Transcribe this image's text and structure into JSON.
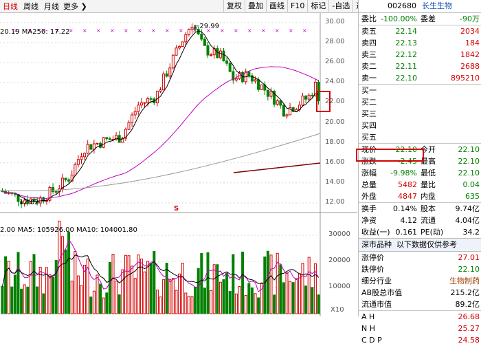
{
  "toolbar": {
    "period_tabs": [
      "日线",
      "周线",
      "月线",
      "更多"
    ],
    "buttons": [
      "复权",
      "叠加",
      "画线",
      "F10",
      "标记",
      "-自选",
      "返回"
    ]
  },
  "stock": {
    "code": "002680",
    "name": "长生生物"
  },
  "chart": {
    "ma_label": "20.19 MA250: 17.22",
    "vol_label": "2.00 MA5: 105926.00 MA10: 104001.80",
    "price_high_label": "29.99",
    "price_low_label": "12.02",
    "marker_s": "S",
    "price_axis": [
      "30.00",
      "28.00",
      "26.00",
      "24.00",
      "22.00",
      "20.00",
      "18.00",
      "16.00",
      "14.00",
      "12.00"
    ],
    "vol_axis": [
      "30000",
      "20000",
      "10000"
    ],
    "vol_unit": "X10"
  },
  "quotes": {
    "ratio": {
      "label": "委比",
      "value": "-100.00%",
      "label2": "委差",
      "value2": "-90万"
    },
    "sell": [
      {
        "label": "卖五",
        "price": "22.14",
        "vol": "2034"
      },
      {
        "label": "卖四",
        "price": "22.13",
        "vol": "184"
      },
      {
        "label": "卖三",
        "price": "22.12",
        "vol": "1842"
      },
      {
        "label": "卖二",
        "price": "22.11",
        "vol": "2688"
      },
      {
        "label": "卖一",
        "price": "22.10",
        "vol": "895210"
      }
    ],
    "buy": [
      "买一",
      "买二",
      "买三",
      "买四",
      "买五"
    ],
    "stats": [
      {
        "l1": "现价",
        "v1": "22.10",
        "l2": "今开",
        "v2": "22.10"
      },
      {
        "l1": "涨跌",
        "v1": "-2.45",
        "l2": "最高",
        "v2": "22.10"
      },
      {
        "l1": "涨幅",
        "v1": "-9.98%",
        "l2": "最低",
        "v2": "22.10"
      },
      {
        "l1": "总量",
        "v1": "5482",
        "l2": "量比",
        "v2": "0.04"
      },
      {
        "l1": "外盘",
        "v1": "4847",
        "l2": "内盘",
        "v2": "635"
      }
    ],
    "stats2": [
      {
        "l1": "换手",
        "v1": "0.14%",
        "l2": "股本",
        "v2": "9.74亿"
      },
      {
        "l1": "净资",
        "v1": "4.12",
        "l2": "流通",
        "v2": "4.04亿"
      },
      {
        "l1": "收益(一)",
        "v1": "0.161",
        "l2": "PE(动)",
        "v2": "34.2"
      }
    ]
  },
  "market": {
    "header_left": "深市品种",
    "header_right": "以下数据仅供参考",
    "rows": [
      {
        "label": "涨停价",
        "value": "27.01"
      },
      {
        "label": "跌停价",
        "value": "22.10"
      },
      {
        "label": "细分行业",
        "value": "生物制药"
      },
      {
        "label": "AB股总市值",
        "value": "215.2亿"
      },
      {
        "label": "流通市值",
        "value": "89.2亿"
      }
    ],
    "indices": [
      {
        "label": "A H",
        "value": "26.68"
      },
      {
        "label": "N H",
        "value": "25.27"
      },
      {
        "label": "C D P",
        "value": "24.58"
      }
    ]
  }
}
